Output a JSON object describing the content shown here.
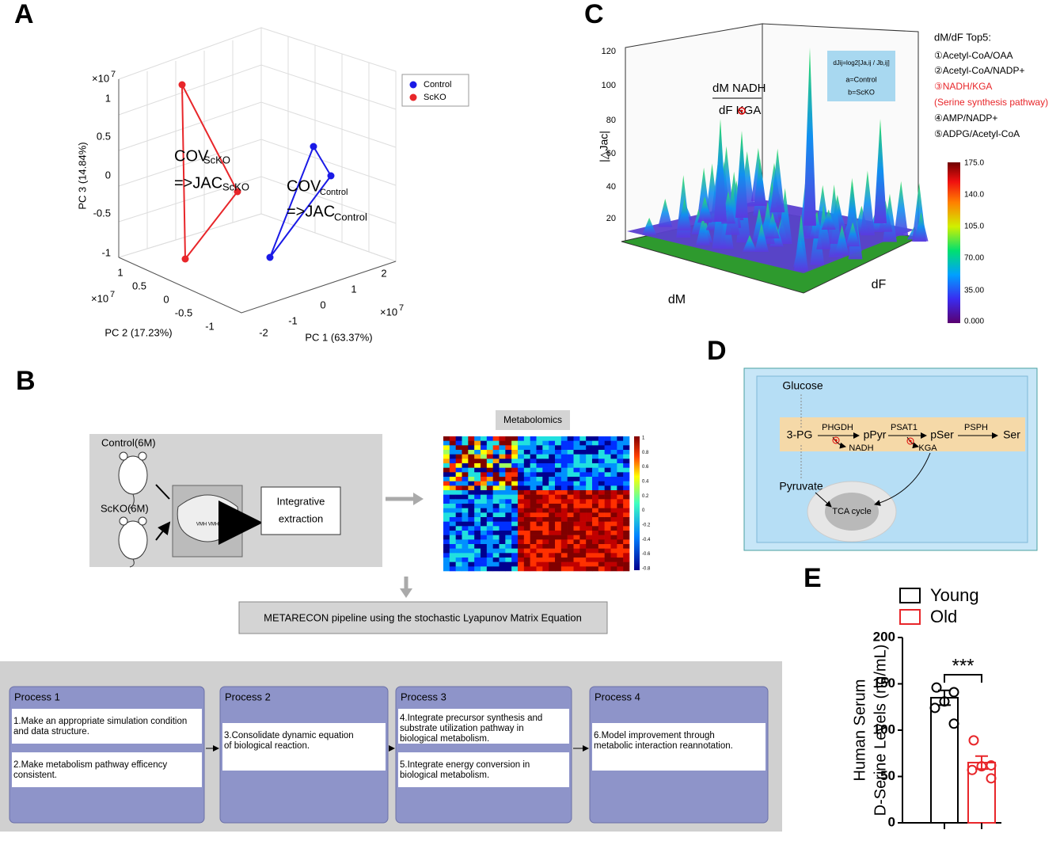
{
  "panel_a": {
    "letter": "A",
    "z_ticks": [
      "1",
      "0.5",
      "0",
      "-0.5",
      "-1"
    ],
    "y_ticks": [
      "1",
      "0.5",
      "0",
      "-0.5",
      "-1"
    ],
    "x_ticks": [
      "-2",
      "-1",
      "0",
      "1",
      "2"
    ],
    "exponent_base": "×10",
    "exponent": "7",
    "z_label": "PC 3 (14.84%)",
    "y_label": "PC 2 (17.23%)",
    "x_label": "PC 1 (63.37%)",
    "legend": [
      "Control",
      "ScKO"
    ],
    "cov": "COV",
    "jac": "=>JAC",
    "scko": "ScKO",
    "control": "Control"
  },
  "panel_b": {
    "letter": "B",
    "control_group": "Control(6M)",
    "scko_group": "ScKO(6M)",
    "brain_label": "VMH VMH",
    "extraction": [
      "Integrative",
      "extraction"
    ],
    "metabolomics": "Metabolomics",
    "colorbar_ticks": [
      "1",
      "0.8",
      "0.6",
      "0.4",
      "0.2",
      "0",
      "-0.2",
      "-0.4",
      "-0.6",
      "-0.8"
    ],
    "pipeline": "METARECON pipeline using the stochastic Lyapunov Matrix Equation",
    "processes": [
      {
        "title": "Process 1",
        "steps": [
          [
            "1.Make an appropriate simulation condition",
            "and data structure."
          ],
          [
            "2.Make metabolism pathway efficency",
            "consistent."
          ]
        ]
      },
      {
        "title": "Process 2",
        "steps": [
          [
            "3.Consolidate dynamic equation",
            "of biological reaction."
          ]
        ]
      },
      {
        "title": "Process 3",
        "steps": [
          [
            "4.Integrate  precursor synthesis and",
            "substrate utilization  pathway in",
            "biological metabolism."
          ],
          [
            "5.Integrate  energy conversion in",
            "biological metabolism."
          ]
        ]
      },
      {
        "title": "Process 4",
        "steps": [
          [
            "6.Model improvement through",
            "metabolic interaction reannotation."
          ]
        ]
      }
    ]
  },
  "panel_c": {
    "letter": "C",
    "z_ticks": [
      "120",
      "100",
      "80",
      "60",
      "40",
      "20"
    ],
    "z_label": "|△Jac|",
    "x_label": "dM",
    "y_label": "dF",
    "annotation_top": "dM NADH",
    "annotation_bottom": "dF KGA",
    "formula": [
      "dJij=log2[Ja,ij / Jb,ij]",
      "a=Control",
      "b=ScKO"
    ],
    "top5_title": "dM/dF Top5:",
    "top5": [
      "①Acetyl-CoA/OAA",
      "②Acetyl-CoA/NADP+",
      "③NADH/KGA",
      "(Serine synthesis pathway)",
      "④AMP/NADP+",
      "⑤ADPG/Acetyl-CoA"
    ],
    "colorbar_ticks": [
      "175.0",
      "140.0",
      "105.0",
      "70.00",
      "35.00",
      "0.000"
    ]
  },
  "panel_d": {
    "letter": "D",
    "glucose": "Glucose",
    "pg": "3-PG",
    "phgdh": "PHGDH",
    "ppyr": "pPyr",
    "psat1": "PSAT1",
    "pser": "pSer",
    "psph": "PSPH",
    "ser": "Ser",
    "nadh": "NADH",
    "kga": "KGA",
    "pyruvate": "Pyruvate",
    "tca": "TCA cycle"
  },
  "panel_e": {
    "letter": "E"
  },
  "chart_data": {
    "type": "bar",
    "ylabel": [
      "Human Serum",
      "D-Serine Levels (ng/mL)"
    ],
    "ylim": [
      0,
      200
    ],
    "yticks": [
      0,
      50,
      100,
      150,
      200
    ],
    "series": [
      {
        "name": "Young",
        "color": "#000000",
        "values": [
          135
        ],
        "errors": [
          8
        ],
        "points": [
          146,
          141,
          131,
          124,
          107
        ]
      },
      {
        "name": "Old",
        "color": "#e8262a",
        "values": [
          65
        ],
        "errors": [
          7
        ],
        "points": [
          89,
          62,
          61,
          57,
          48
        ]
      }
    ],
    "annotation": "***"
  }
}
